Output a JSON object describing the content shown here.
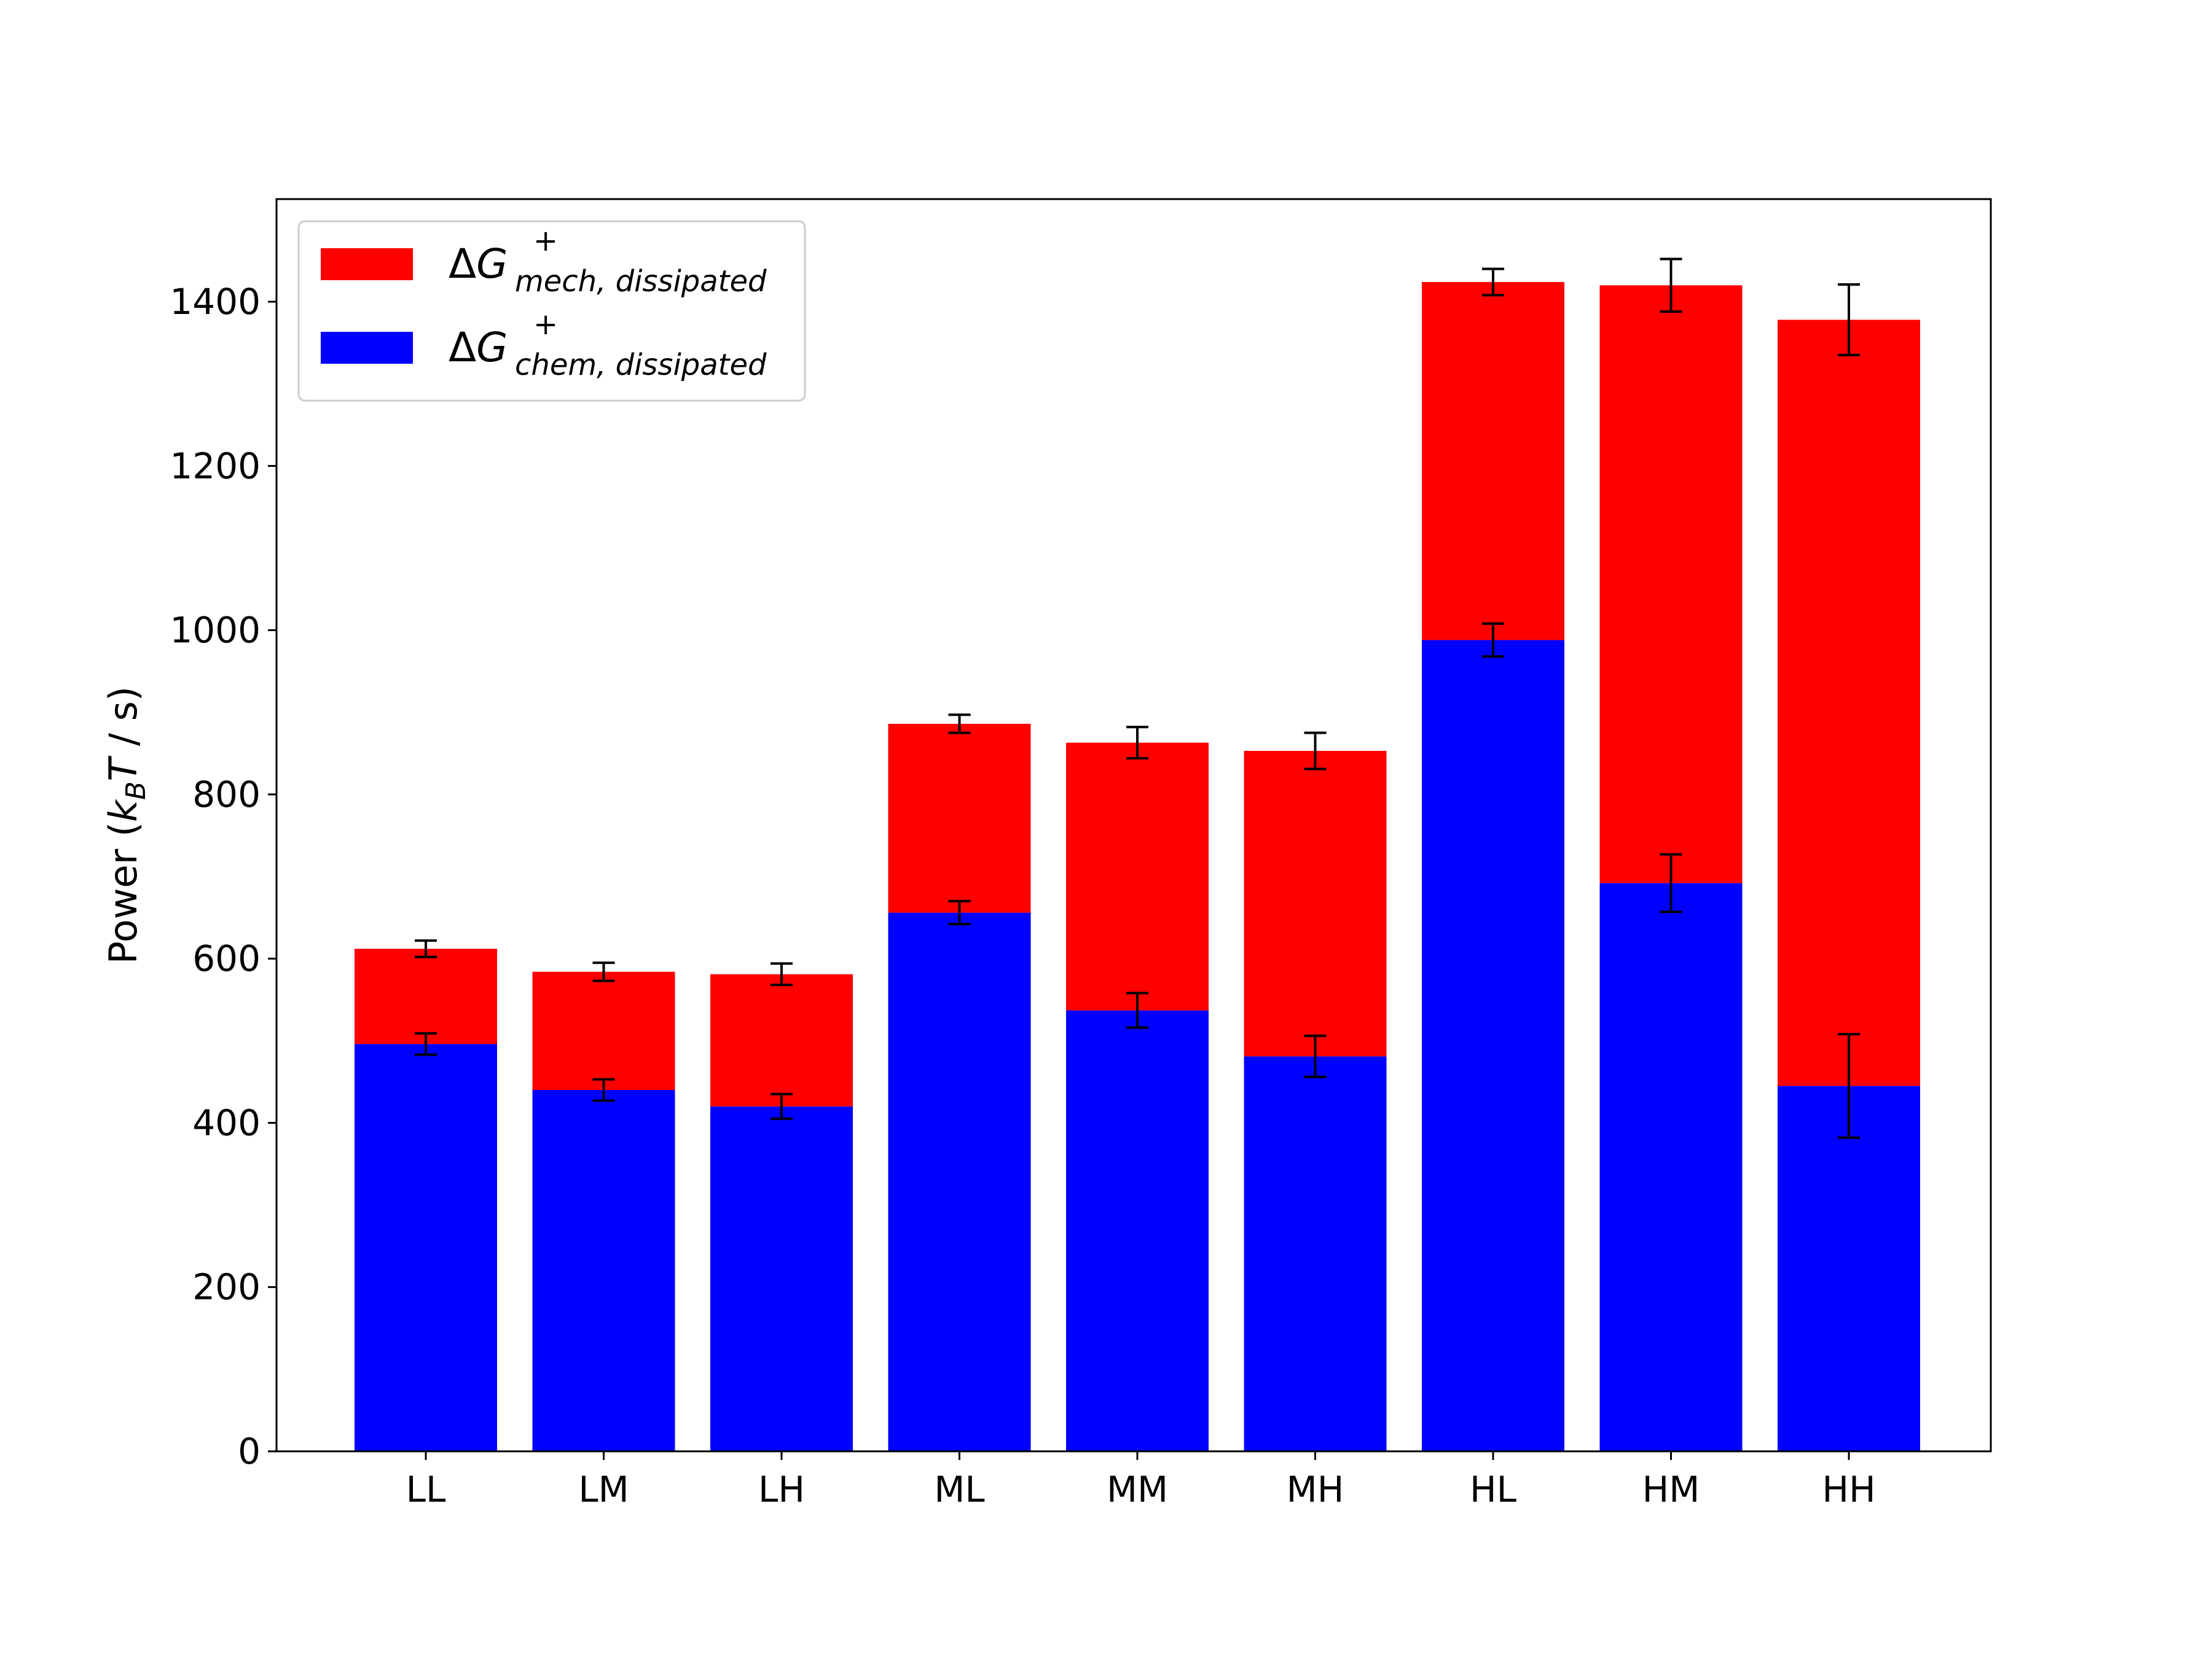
{
  "chart_data": {
    "type": "bar",
    "stacked": true,
    "categories": [
      "LL",
      "LM",
      "LH",
      "ML",
      "MM",
      "MH",
      "HL",
      "HM",
      "HH"
    ],
    "series": [
      {
        "name": "ΔG⁺ chem, dissipated",
        "legend_base": "ΔG",
        "legend_sup": "+",
        "legend_sub": "chem, dissipated",
        "color": "#0000ff",
        "values": [
          496,
          440,
          420,
          656,
          537,
          481,
          988,
          692,
          445
        ],
        "errors": [
          13,
          13,
          15,
          14,
          21,
          25,
          20,
          35,
          63
        ]
      },
      {
        "name": "ΔG⁺ mech, dissipated",
        "legend_base": "ΔG",
        "legend_sup": "+",
        "legend_sub": "mech, dissipated",
        "color": "#ff0000",
        "values": [
          116,
          144,
          161,
          230,
          326,
          372,
          436,
          728,
          933
        ],
        "errors": [
          10,
          11,
          13,
          11,
          19,
          22,
          16,
          32,
          43
        ]
      }
    ],
    "legend_order": [
      1,
      0
    ],
    "ylabel": "Power (kBT / s)",
    "ylabel_parts": {
      "prefix": "Power (",
      "k": "k",
      "k_sub": "B",
      "T": "T",
      "suffix": " / s)"
    },
    "xlabel": "",
    "ylim": [
      0,
      1525
    ],
    "yticks": [
      0,
      200,
      400,
      600,
      800,
      1000,
      1200,
      1400
    ],
    "grid": false,
    "legend_position": "top-left"
  }
}
